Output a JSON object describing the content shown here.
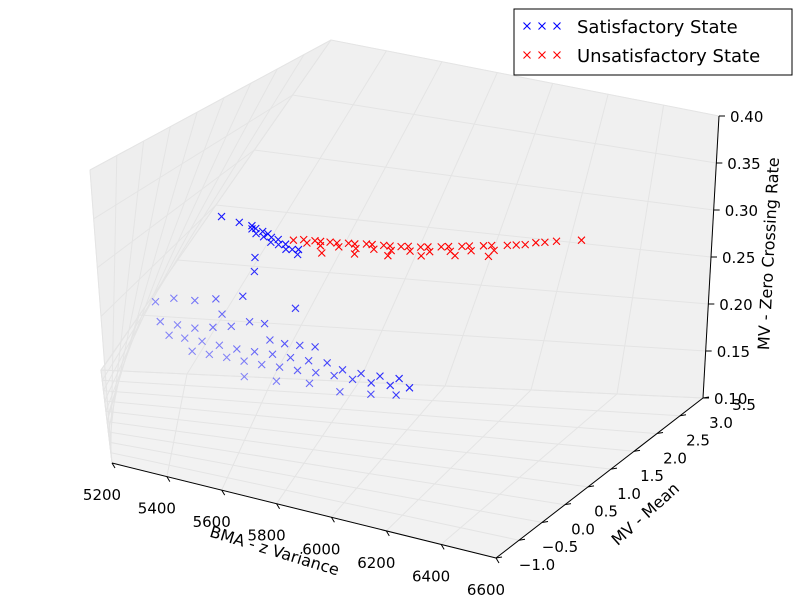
{
  "chart_data": {
    "type": "scatter",
    "projection": "3d",
    "xlabel": "BMA - z Variance",
    "ylabel": "MV - Mean",
    "zlabel": "MV - Zero Crossing Rate",
    "xlim": [
      5200,
      6600
    ],
    "ylim": [
      -1.0,
      3.5
    ],
    "zlim": [
      0.1,
      0.4
    ],
    "xticks": [
      "5200",
      "5400",
      "5600",
      "5800",
      "6000",
      "6200",
      "6400",
      "6600"
    ],
    "yticks": [
      "−1.0",
      "−0.5",
      "0.0",
      "0.5",
      "1.0",
      "1.5",
      "2.0",
      "2.5",
      "3.0",
      "3.5"
    ],
    "zticks": [
      "0.10",
      "0.15",
      "0.20",
      "0.25",
      "0.30",
      "0.35",
      "0.40"
    ],
    "grid": true,
    "legend_position": "top-right",
    "series": [
      {
        "name": "Satisfactory State",
        "color": "#0000ff",
        "marker": "x",
        "points": [
          [
            5350,
            1.2,
            0.305
          ],
          [
            5405,
            1.25,
            0.302
          ],
          [
            5442,
            1.3,
            0.3
          ],
          [
            5452,
            1.22,
            0.3
          ],
          [
            5458,
            1.28,
            0.299
          ],
          [
            5472,
            1.18,
            0.298
          ],
          [
            5480,
            1.3,
            0.297
          ],
          [
            5496,
            1.2,
            0.296
          ],
          [
            5498,
            1.3,
            0.296
          ],
          [
            5515,
            1.26,
            0.295
          ],
          [
            5526,
            1.16,
            0.294
          ],
          [
            5534,
            1.3,
            0.293
          ],
          [
            5548,
            1.2,
            0.292
          ],
          [
            5562,
            1.28,
            0.291
          ],
          [
            5576,
            1.18,
            0.29
          ],
          [
            5590,
            1.24,
            0.289
          ],
          [
            5604,
            1.3,
            0.288
          ],
          [
            5614,
            1.2,
            0.287
          ],
          [
            5495,
            1.1,
            0.278
          ],
          [
            5512,
            1.0,
            0.268
          ],
          [
            5502,
            0.9,
            0.245
          ],
          [
            5670,
            0.9,
            0.245
          ],
          [
            5290,
            0.1,
            0.245
          ],
          [
            5340,
            0.2,
            0.25
          ],
          [
            5400,
            0.3,
            0.25
          ],
          [
            5450,
            0.5,
            0.25
          ],
          [
            5485,
            0.4,
            0.24
          ],
          [
            5320,
            0.0,
            0.23
          ],
          [
            5370,
            0.1,
            0.228
          ],
          [
            5420,
            0.2,
            0.226
          ],
          [
            5470,
            0.3,
            0.228
          ],
          [
            5520,
            0.4,
            0.23
          ],
          [
            5560,
            0.6,
            0.232
          ],
          [
            5600,
            0.7,
            0.23
          ],
          [
            5640,
            0.5,
            0.222
          ],
          [
            5680,
            0.6,
            0.218
          ],
          [
            5720,
            0.7,
            0.216
          ],
          [
            5760,
            0.8,
            0.214
          ],
          [
            5360,
            -0.1,
            0.222
          ],
          [
            5405,
            0.0,
            0.22
          ],
          [
            5455,
            0.1,
            0.218
          ],
          [
            5505,
            0.2,
            0.215
          ],
          [
            5555,
            0.3,
            0.212
          ],
          [
            5605,
            0.4,
            0.21
          ],
          [
            5655,
            0.5,
            0.208
          ],
          [
            5705,
            0.6,
            0.205
          ],
          [
            5755,
            0.7,
            0.202
          ],
          [
            5805,
            0.8,
            0.2
          ],
          [
            5855,
            0.8,
            0.196
          ],
          [
            5905,
            0.9,
            0.192
          ],
          [
            5955,
            1.0,
            0.189
          ],
          [
            6005,
            1.1,
            0.186
          ],
          [
            5440,
            -0.1,
            0.212
          ],
          [
            5490,
            0.0,
            0.21
          ],
          [
            5540,
            0.1,
            0.208
          ],
          [
            5590,
            0.2,
            0.205
          ],
          [
            5640,
            0.3,
            0.202
          ],
          [
            5690,
            0.4,
            0.2
          ],
          [
            5740,
            0.5,
            0.197
          ],
          [
            5790,
            0.6,
            0.195
          ],
          [
            5840,
            0.7,
            0.192
          ],
          [
            5890,
            0.8,
            0.188
          ],
          [
            5940,
            0.9,
            0.184
          ],
          [
            5990,
            1.0,
            0.181
          ],
          [
            6040,
            1.1,
            0.178
          ],
          [
            5610,
            0.0,
            0.196
          ],
          [
            5700,
            0.2,
            0.192
          ],
          [
            5790,
            0.4,
            0.19
          ],
          [
            5880,
            0.5,
            0.184
          ],
          [
            5960,
            0.7,
            0.18
          ],
          [
            6020,
            0.9,
            0.176
          ]
        ]
      },
      {
        "name": "Unsatisfactory State",
        "color": "#ff0000",
        "marker": "x",
        "points": [
          [
            5572,
            1.4,
            0.292
          ],
          [
            5594,
            1.5,
            0.291
          ],
          [
            5610,
            1.46,
            0.29
          ],
          [
            5624,
            1.56,
            0.29
          ],
          [
            5638,
            1.6,
            0.289
          ],
          [
            5648,
            1.52,
            0.288
          ],
          [
            5662,
            1.66,
            0.288
          ],
          [
            5680,
            1.7,
            0.287
          ],
          [
            5694,
            1.64,
            0.286
          ],
          [
            5708,
            1.78,
            0.286
          ],
          [
            5724,
            1.82,
            0.285
          ],
          [
            5738,
            1.74,
            0.284
          ],
          [
            5752,
            1.9,
            0.284
          ],
          [
            5766,
            1.94,
            0.283
          ],
          [
            5782,
            1.86,
            0.282
          ],
          [
            5796,
            2.0,
            0.282
          ],
          [
            5812,
            2.04,
            0.281
          ],
          [
            5826,
            1.96,
            0.28
          ],
          [
            5840,
            2.1,
            0.28
          ],
          [
            5856,
            2.16,
            0.279
          ],
          [
            5872,
            2.08,
            0.278
          ],
          [
            5888,
            2.22,
            0.278
          ],
          [
            5904,
            2.28,
            0.277
          ],
          [
            5920,
            2.2,
            0.276
          ],
          [
            5936,
            2.36,
            0.276
          ],
          [
            5952,
            2.42,
            0.275
          ],
          [
            5968,
            2.34,
            0.274
          ],
          [
            5984,
            2.5,
            0.274
          ],
          [
            6000,
            2.56,
            0.273
          ],
          [
            6016,
            2.48,
            0.272
          ],
          [
            6034,
            2.64,
            0.272
          ],
          [
            6052,
            2.7,
            0.271
          ],
          [
            6070,
            2.62,
            0.27
          ],
          [
            6090,
            2.78,
            0.27
          ],
          [
            6110,
            2.84,
            0.269
          ],
          [
            6130,
            2.9,
            0.268
          ],
          [
            6150,
            3.0,
            0.267
          ],
          [
            6170,
            3.06,
            0.266
          ],
          [
            6195,
            3.14,
            0.265
          ],
          [
            6250,
            3.3,
            0.262
          ],
          [
            5660,
            1.5,
            0.282
          ],
          [
            5742,
            1.7,
            0.28
          ],
          [
            5824,
            1.92,
            0.276
          ],
          [
            5902,
            2.16,
            0.272
          ],
          [
            5980,
            2.4,
            0.268
          ],
          [
            6060,
            2.6,
            0.264
          ]
        ]
      }
    ]
  }
}
